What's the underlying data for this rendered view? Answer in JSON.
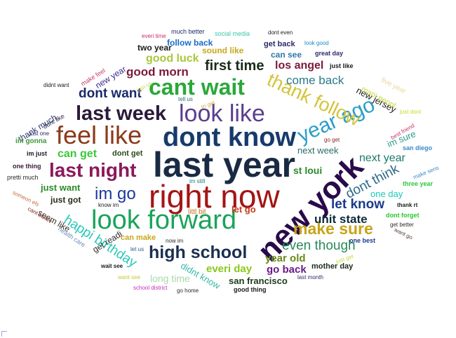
{
  "words": [
    {
      "text": "last year",
      "color": "#1a2a44"
    },
    {
      "text": "right now",
      "color": "#a31515"
    },
    {
      "text": "dont know",
      "color": "#163a6b"
    },
    {
      "text": "new york",
      "color": "#2a0a4a"
    },
    {
      "text": "look forward",
      "color": "#1aa35a"
    },
    {
      "text": "look like",
      "color": "#5a3e8f"
    },
    {
      "text": "feel like",
      "color": "#8b3a1a"
    },
    {
      "text": "cant wait",
      "color": "#2aa83a"
    },
    {
      "text": "year ago",
      "color": "#2a9ec8"
    },
    {
      "text": "thank follow",
      "color": "#d4c43a"
    },
    {
      "text": "last week",
      "color": "#2a1a3a"
    },
    {
      "text": "last night",
      "color": "#8a1a5a"
    },
    {
      "text": "high school",
      "color": "#1a3050"
    },
    {
      "text": "make sure",
      "color": "#c8a41a"
    },
    {
      "text": "im go",
      "color": "#1a3a9a"
    },
    {
      "text": "first time",
      "color": "#1a2a1a"
    },
    {
      "text": "happi birthday",
      "color": "#2ac8b8"
    },
    {
      "text": "dont think",
      "color": "#2a6a8a"
    },
    {
      "text": "let know",
      "color": "#1a3a8a"
    },
    {
      "text": "even though",
      "color": "#2a8a5a"
    },
    {
      "text": "dont want",
      "color": "#1a2a6a"
    },
    {
      "text": "good morn",
      "color": "#7a1a3a"
    },
    {
      "text": "unit state",
      "color": "#0a2a3a"
    },
    {
      "text": "come back",
      "color": "#2a7a8a"
    },
    {
      "text": "next year",
      "color": "#1a7a6a"
    },
    {
      "text": "good luck",
      "color": "#a8c83a"
    },
    {
      "text": "can get",
      "color": "#3ac83a"
    },
    {
      "text": "los angel",
      "color": "#7a1a3a"
    },
    {
      "text": "year old",
      "color": "#6a8a1a"
    },
    {
      "text": "everi day",
      "color": "#8ac81a"
    },
    {
      "text": "go back",
      "color": "#6a1a8a"
    },
    {
      "text": "new jersey",
      "color": "#1a1a1a"
    },
    {
      "text": "next week",
      "color": "#2a6a6a"
    },
    {
      "text": "st loui",
      "color": "#2a8a2a"
    },
    {
      "text": "im sure",
      "color": "#2a9a8a"
    },
    {
      "text": "long time",
      "color": "#a8d8a8"
    },
    {
      "text": "one day",
      "color": "#1ac8b8"
    },
    {
      "text": "san francisco",
      "color": "#1a3a1a"
    },
    {
      "text": "just want",
      "color": "#2a8a2a"
    },
    {
      "text": "didnt know",
      "color": "#3ab8a8"
    },
    {
      "text": "let go",
      "color": "#c83a1a"
    },
    {
      "text": "sound like",
      "color": "#c8a81a"
    },
    {
      "text": "can see",
      "color": "#2a7aa8"
    },
    {
      "text": "just got",
      "color": "#2a2a1a"
    },
    {
      "text": "new year",
      "color": "#3a2a8a"
    },
    {
      "text": "mani peopl",
      "color": "#c8d83a"
    },
    {
      "text": "can make",
      "color": "#c8a81a"
    },
    {
      "text": "thank much",
      "color": "#2a3a6a"
    },
    {
      "text": "two year",
      "color": "#1a1a1a"
    },
    {
      "text": "follow back",
      "color": "#1a6ac8"
    },
    {
      "text": "get back",
      "color": "#2a2a6a"
    },
    {
      "text": "mother day",
      "color": "#1a2a1a"
    },
    {
      "text": "seem like",
      "color": "#3a2a2a"
    },
    {
      "text": "get readi",
      "color": "#2a2a2a"
    },
    {
      "text": "littl bit",
      "color": "#c86a1a"
    },
    {
      "text": "dont get",
      "color": "#2a4a1a"
    },
    {
      "text": "im gonna",
      "color": "#3a9a3a"
    },
    {
      "text": "five year",
      "color": "#e8d89a"
    },
    {
      "text": "good thing",
      "color": "#1a1a1a"
    },
    {
      "text": "just like",
      "color": "#1a1a1a"
    },
    {
      "text": "social media",
      "color": "#3ac8a8"
    },
    {
      "text": "much better",
      "color": "#1a2a6a"
    },
    {
      "text": "great day",
      "color": "#2a2a6a"
    },
    {
      "text": "san diego",
      "color": "#3a8ac8"
    },
    {
      "text": "three year",
      "color": "#2ac83a"
    },
    {
      "text": "dont forget",
      "color": "#2ac82a"
    },
    {
      "text": "make feel",
      "color": "#c83a6a"
    },
    {
      "text": "one thing",
      "color": "#3a1a3a"
    },
    {
      "text": "im just",
      "color": "#1a1a2a"
    },
    {
      "text": "one best",
      "color": "#1a3a8a"
    },
    {
      "text": "pretti much",
      "color": "#2a2a2a"
    },
    {
      "text": "health care",
      "color": "#6a8ab8"
    },
    {
      "text": "cant believ",
      "color": "#7a2a1a"
    },
    {
      "text": "someon els",
      "color": "#c86a3a"
    },
    {
      "text": "best friend",
      "color": "#c8366a"
    },
    {
      "text": "thank rt",
      "color": "#1a1a1a"
    },
    {
      "text": "want go",
      "color": "#5a3a3a"
    },
    {
      "text": "get better",
      "color": "#2a2a2a"
    },
    {
      "text": "just get",
      "color": "#c8d83a"
    },
    {
      "text": "last month",
      "color": "#2a2a6a"
    },
    {
      "text": "go home",
      "color": "#2a2a2a"
    },
    {
      "text": "school district",
      "color": "#c82ab8"
    },
    {
      "text": "want see",
      "color": "#c8c83a"
    },
    {
      "text": "wait see",
      "color": "#1a1a1a"
    },
    {
      "text": "let us",
      "color": "#2a5a8a"
    },
    {
      "text": "now im",
      "color": "#2a2a2a"
    },
    {
      "text": "know im",
      "color": "#1a1a1a"
    },
    {
      "text": "im still",
      "color": "#1a7a7a"
    },
    {
      "text": "go get",
      "color": "#8a1a1a"
    },
    {
      "text": "tri get",
      "color": "#d8a83a"
    },
    {
      "text": "tell us",
      "color": "#2a6a6a"
    },
    {
      "text": "join us",
      "color": "#c8d83a"
    },
    {
      "text": "didnt want",
      "color": "#1a1a1a"
    },
    {
      "text": "dont like",
      "color": "#2a2a4a"
    },
    {
      "text": "just one",
      "color": "#2a1a6a"
    },
    {
      "text": "everi time",
      "color": "#c82a6a"
    },
    {
      "text": "dont even",
      "color": "#1a1a1a"
    },
    {
      "text": "look good",
      "color": "#1a8ac8"
    },
    {
      "text": "just dont",
      "color": "#c8d82a"
    },
    {
      "text": "make sens",
      "color": "#3a8ac8"
    }
  ]
}
